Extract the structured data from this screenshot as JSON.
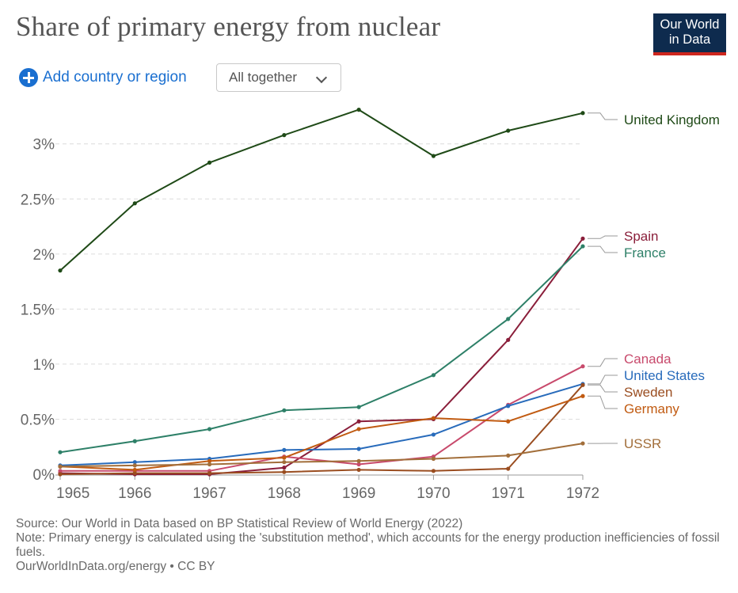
{
  "header": {
    "title": "Share of primary energy from nuclear",
    "logo_line1": "Our World",
    "logo_line2": "in Data"
  },
  "controls": {
    "add_label": "Add country or region",
    "view_select": "All together"
  },
  "footer": {
    "source": "Source: Our World in Data based on BP Statistical Review of World Energy (2022)",
    "note": "Note: Primary energy is calculated using the 'substitution method', which accounts for the energy production inefficiencies of fossil fuels.",
    "credit": "OurWorldInData.org/energy • CC BY"
  },
  "chart_data": {
    "type": "line",
    "title": "Share of primary energy from nuclear",
    "x": [
      1965,
      1966,
      1967,
      1968,
      1969,
      1970,
      1971,
      1972
    ],
    "xlim": [
      1965,
      1972
    ],
    "ylim": [
      0,
      3.3
    ],
    "yticks": [
      0,
      0.5,
      1,
      1.5,
      2,
      2.5,
      3
    ],
    "ytick_labels": [
      "0%",
      "0.5%",
      "1%",
      "1.5%",
      "2%",
      "2.5%",
      "3%"
    ],
    "grid": true,
    "legend": "right, inline labels",
    "series": [
      {
        "name": "United Kingdom",
        "color": "#1f4a17",
        "values": [
          1.85,
          2.46,
          2.83,
          3.08,
          3.31,
          2.89,
          3.12,
          3.28
        ]
      },
      {
        "name": "Spain",
        "color": "#8a1e3a",
        "values": [
          0.01,
          0.0,
          0.0,
          0.06,
          0.48,
          0.5,
          1.22,
          2.14
        ]
      },
      {
        "name": "France",
        "color": "#2e8068",
        "values": [
          0.2,
          0.3,
          0.41,
          0.58,
          0.61,
          0.9,
          1.41,
          2.07
        ]
      },
      {
        "name": "Canada",
        "color": "#c84a6c",
        "values": [
          0.03,
          0.03,
          0.03,
          0.16,
          0.09,
          0.16,
          0.63,
          0.98
        ]
      },
      {
        "name": "United States",
        "color": "#286bbb",
        "values": [
          0.08,
          0.11,
          0.14,
          0.22,
          0.23,
          0.36,
          0.62,
          0.82
        ]
      },
      {
        "name": "Sweden",
        "color": "#9a4d20",
        "values": [
          0.0,
          0.01,
          0.01,
          0.02,
          0.04,
          0.03,
          0.05,
          0.81
        ]
      },
      {
        "name": "Germany",
        "color": "#c15b12",
        "values": [
          0.07,
          0.04,
          0.12,
          0.15,
          0.41,
          0.51,
          0.48,
          0.71
        ]
      },
      {
        "name": "USSR",
        "color": "#a26e3a",
        "values": [
          0.07,
          0.08,
          0.09,
          0.11,
          0.12,
          0.14,
          0.17,
          0.28
        ]
      }
    ]
  }
}
